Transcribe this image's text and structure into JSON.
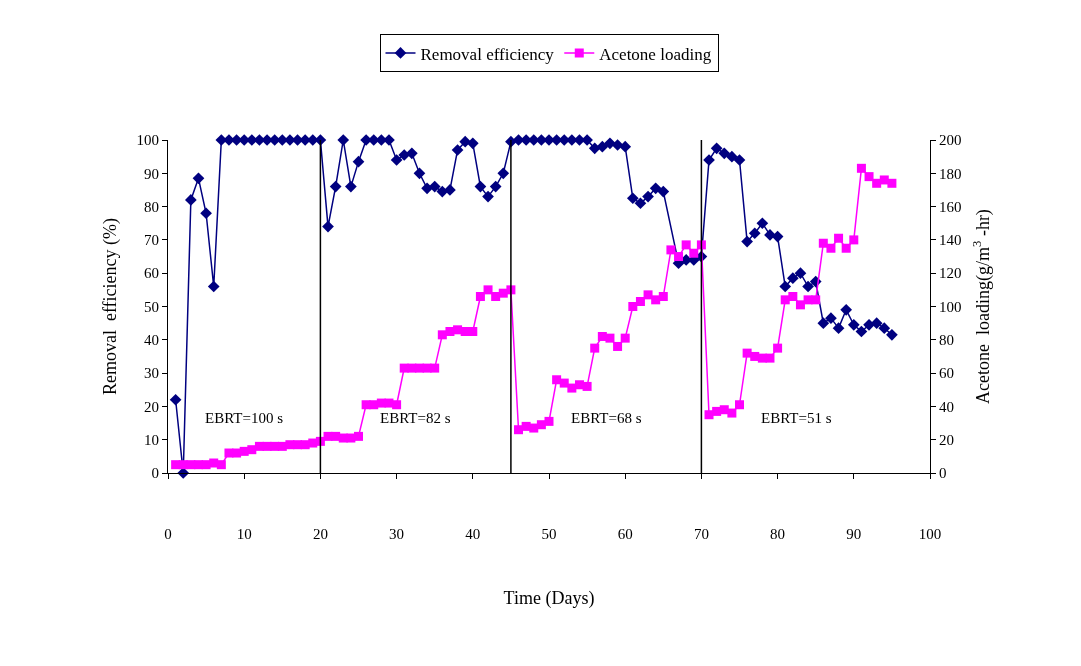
{
  "chart_data": {
    "type": "line",
    "xlabel": "Time (Days)",
    "ylabel": "Removal  efficiency (%)",
    "y2label": "Acetone  loading(g/m$^{3}$ -hr)",
    "xlim": [
      0,
      100
    ],
    "xticks": [
      0,
      10,
      20,
      30,
      40,
      50,
      60,
      70,
      80,
      90,
      100
    ],
    "ylim": [
      0,
      100
    ],
    "yticks": [
      0,
      10,
      20,
      30,
      40,
      50,
      60,
      70,
      80,
      90,
      100
    ],
    "y2lim": [
      0,
      200
    ],
    "y2ticks": [
      0,
      20,
      40,
      60,
      80,
      100,
      120,
      140,
      160,
      180,
      200
    ],
    "grid": false,
    "legend": "top",
    "line_style": "solid",
    "series": [
      {
        "name": "Removal efficiency",
        "color": "#000080",
        "marker": "diamond",
        "x": [
          1,
          2,
          3,
          4,
          5,
          6,
          7,
          8,
          9,
          10,
          11,
          12,
          13,
          14,
          15,
          16,
          17,
          18,
          19,
          20,
          21,
          22,
          23,
          24,
          25,
          26,
          27,
          28,
          29,
          30,
          31,
          32,
          33,
          34,
          35,
          36,
          37,
          38,
          39,
          40,
          41,
          42,
          43,
          44,
          45,
          46,
          47,
          48,
          49,
          50,
          51,
          52,
          53,
          54,
          55,
          56,
          57,
          58,
          59,
          60,
          61,
          62,
          63,
          64,
          65,
          67,
          68,
          69,
          70,
          71,
          72,
          73,
          74,
          75,
          76,
          77,
          78,
          79,
          80,
          81,
          82,
          83,
          84,
          85,
          86,
          87,
          88,
          89,
          90,
          91,
          92,
          93,
          94,
          95
        ],
        "values": [
          22,
          0,
          82,
          88.5,
          78,
          56,
          100,
          100,
          100,
          100,
          100,
          100,
          100,
          100,
          100,
          100,
          100,
          100,
          100,
          100,
          74,
          86,
          100,
          86,
          93.5,
          100,
          100,
          100,
          100,
          94,
          95.5,
          96,
          90,
          85.5,
          86,
          84.5,
          85,
          97,
          99.5,
          99,
          86,
          83,
          86,
          90,
          99.5,
          100,
          100,
          100,
          100,
          100,
          100,
          100,
          100,
          100,
          100,
          97.5,
          98,
          99,
          98.5,
          98,
          82.5,
          81,
          83,
          85.5,
          84.5,
          63,
          64,
          64,
          65,
          94,
          97.5,
          96,
          95,
          94,
          69.5,
          72,
          75,
          71.5,
          71,
          56,
          58.5,
          60,
          56,
          57.5,
          45,
          46.5,
          43.5,
          49,
          44.5,
          42.5,
          44.5,
          45,
          43.5,
          41.5
        ]
      },
      {
        "name": "Acetone loading",
        "color": "#ff00ff",
        "marker": "square",
        "axis": "y2",
        "x": [
          1,
          2,
          3,
          4,
          5,
          6,
          7,
          8,
          9,
          10,
          11,
          12,
          13,
          14,
          15,
          16,
          17,
          18,
          19,
          20,
          21,
          22,
          23,
          24,
          25,
          26,
          27,
          28,
          29,
          30,
          31,
          32,
          33,
          34,
          35,
          36,
          37,
          38,
          39,
          40,
          41,
          42,
          43,
          44,
          45,
          46,
          47,
          48,
          49,
          50,
          51,
          52,
          53,
          54,
          55,
          56,
          57,
          58,
          59,
          60,
          61,
          62,
          63,
          64,
          65,
          66,
          67,
          68,
          69,
          70,
          71,
          72,
          73,
          74,
          75,
          76,
          77,
          78,
          79,
          80,
          81,
          82,
          83,
          84,
          85,
          86,
          87,
          88,
          89,
          90,
          91,
          92,
          93,
          94,
          95
        ],
        "values": [
          5,
          5,
          5,
          5,
          5,
          6,
          5,
          12,
          12,
          13,
          14,
          16,
          16,
          16,
          16,
          17,
          17,
          17,
          18,
          19,
          22,
          22,
          21,
          21,
          22,
          41,
          41,
          42,
          42,
          41,
          63,
          63,
          63,
          63,
          63,
          83,
          85,
          86,
          85,
          85,
          106,
          110,
          106,
          108,
          110,
          26,
          28,
          27,
          29,
          31,
          56,
          54,
          51,
          53,
          52,
          75,
          82,
          81,
          76,
          81,
          100,
          103,
          107,
          104,
          106,
          134,
          130,
          137,
          132,
          137,
          35,
          37,
          38,
          36,
          41,
          72,
          70,
          69,
          69,
          75,
          104,
          106,
          101,
          104,
          104,
          138,
          135,
          141,
          135,
          140,
          183,
          178,
          174,
          176,
          174
        ]
      }
    ],
    "ref_lines": [
      {
        "axis": "x",
        "value": 20,
        "color": "#000000"
      },
      {
        "axis": "x",
        "value": 45,
        "color": "#000000"
      },
      {
        "axis": "x",
        "value": 70,
        "color": "#000000"
      }
    ],
    "annotations": [
      "EBRT=100 s",
      "EBRT=82 s",
      "EBRT=68 s",
      "EBRT=51 s"
    ]
  }
}
